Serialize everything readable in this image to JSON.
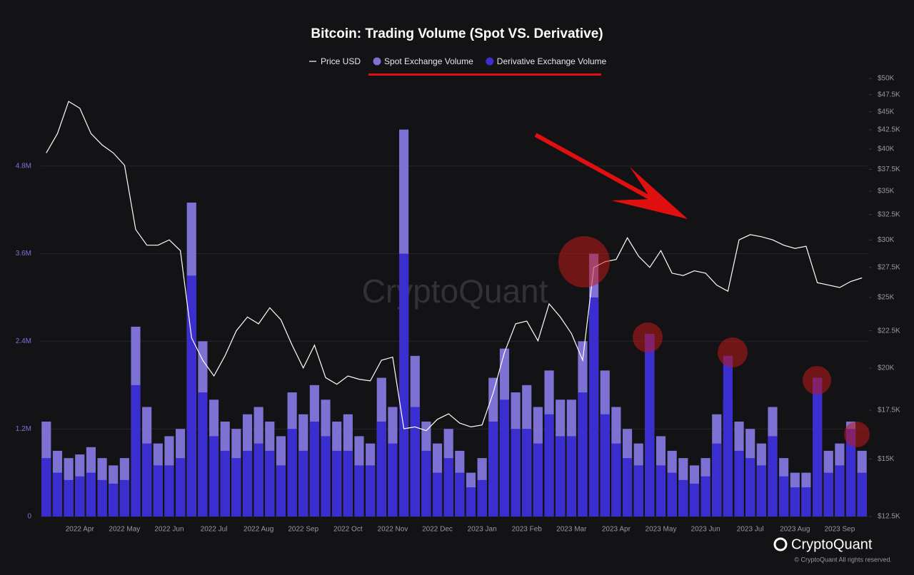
{
  "chart_data": {
    "type": "bar",
    "title": "Bitcoin: Trading Volume (Spot VS. Derivative)",
    "watermark": "CryptoQuant",
    "brand": "CryptoQuant",
    "copyright": "© CryptoQuant All rights reserved.",
    "categories": [
      null,
      null,
      null,
      "2022 Apr",
      null,
      null,
      null,
      "2022 May",
      null,
      null,
      null,
      "2022 Jun",
      null,
      null,
      null,
      "2022 Jul",
      null,
      null,
      null,
      "2022 Aug",
      null,
      null,
      null,
      "2022 Sep",
      null,
      null,
      null,
      "2022 Oct",
      null,
      null,
      null,
      "2022 Nov",
      null,
      null,
      null,
      "2022 Dec",
      null,
      null,
      null,
      "2023 Jan",
      null,
      null,
      null,
      "2023 Feb",
      null,
      null,
      null,
      "2023 Mar",
      null,
      null,
      null,
      "2023 Apr",
      null,
      null,
      null,
      "2023 May",
      null,
      null,
      null,
      "2023 Jun",
      null,
      null,
      null,
      "2023 Jul",
      null,
      null,
      null,
      "2023 Aug",
      null,
      null,
      null,
      "2023 Sep",
      null,
      null
    ],
    "series": [
      {
        "name": "Price USD",
        "type": "line",
        "axis": "y2",
        "color": "#ffffff",
        "values": [
          39500,
          42000,
          46500,
          45500,
          42000,
          40500,
          39500,
          38000,
          31000,
          29500,
          29500,
          30000,
          29000,
          22000,
          20500,
          19500,
          20800,
          22500,
          23500,
          23000,
          24200,
          23300,
          21500,
          20000,
          21500,
          19400,
          19000,
          19500,
          19300,
          19200,
          20500,
          20700,
          16500,
          16600,
          16400,
          17000,
          17300,
          16800,
          16600,
          16700,
          18500,
          21000,
          23000,
          23200,
          21800,
          24500,
          23500,
          22300,
          20500,
          27500,
          28000,
          28200,
          30200,
          28500,
          27500,
          29000,
          27000,
          26800,
          27200,
          27000,
          26000,
          25500,
          30000,
          30500,
          30300,
          30000,
          29500,
          29200,
          29400,
          26200,
          26000,
          25800,
          26300,
          26600
        ]
      },
      {
        "name": "Spot Exchange Volume",
        "type": "bar",
        "color": "#7d72d4",
        "values": [
          1300000,
          900000,
          800000,
          850000,
          950000,
          800000,
          700000,
          800000,
          2600000,
          1500000,
          1000000,
          1100000,
          1200000,
          4300000,
          2400000,
          1600000,
          1300000,
          1200000,
          1400000,
          1500000,
          1300000,
          1100000,
          1700000,
          1400000,
          1800000,
          1600000,
          1300000,
          1400000,
          1100000,
          1000000,
          1900000,
          1500000,
          5300000,
          2200000,
          1300000,
          1000000,
          1200000,
          900000,
          600000,
          800000,
          1900000,
          2300000,
          1700000,
          1800000,
          1500000,
          2000000,
          1600000,
          1600000,
          2400000,
          3600000,
          2000000,
          1500000,
          1200000,
          1000000,
          2500000,
          1100000,
          900000,
          800000,
          700000,
          800000,
          1400000,
          1600000,
          1300000,
          1200000,
          1000000,
          1500000,
          800000,
          600000,
          600000,
          1900000,
          900000,
          1000000,
          1300000,
          900000
        ]
      },
      {
        "name": "Derivative Exchange Volume",
        "type": "bar",
        "color": "#3b2ed0",
        "values": [
          800000,
          600000,
          500000,
          550000,
          600000,
          500000,
          450000,
          500000,
          1800000,
          1000000,
          700000,
          700000,
          800000,
          3300000,
          1700000,
          1100000,
          900000,
          800000,
          900000,
          1000000,
          900000,
          700000,
          1200000,
          900000,
          1300000,
          1100000,
          900000,
          900000,
          700000,
          700000,
          1300000,
          1000000,
          3600000,
          1500000,
          900000,
          600000,
          800000,
          600000,
          400000,
          500000,
          1300000,
          1600000,
          1200000,
          1200000,
          1000000,
          1400000,
          1100000,
          1100000,
          1700000,
          3000000,
          1400000,
          1000000,
          800000,
          700000,
          2500000,
          700000,
          600000,
          500000,
          450000,
          550000,
          1000000,
          2200000,
          900000,
          800000,
          700000,
          1100000,
          550000,
          400000,
          400000,
          1900000,
          600000,
          700000,
          1200000,
          600000
        ]
      }
    ],
    "ylim": [
      0,
      6000000
    ],
    "yticks": [
      0,
      {
        "value": 1200000,
        "label": "1.2M"
      },
      {
        "value": 2400000,
        "label": "2.4M"
      },
      {
        "value": 3600000,
        "label": "3.6M"
      },
      {
        "value": 4800000,
        "label": "4.8M"
      }
    ],
    "y2lim": [
      12500,
      50000
    ],
    "y2log": true,
    "y2ticks": [
      {
        "value": 12500,
        "label": "$12.5K"
      },
      {
        "value": 15000,
        "label": "$15K"
      },
      {
        "value": 17500,
        "label": "$17.5K"
      },
      {
        "value": 20000,
        "label": "$20K"
      },
      {
        "value": 22500,
        "label": "$22.5K"
      },
      {
        "value": 25000,
        "label": "$25K"
      },
      {
        "value": 27500,
        "label": "$27.5K"
      },
      {
        "value": 30000,
        "label": "$30K"
      },
      {
        "value": 32500,
        "label": "$32.5K"
      },
      {
        "value": 35000,
        "label": "$35K"
      },
      {
        "value": 37500,
        "label": "$37.5K"
      },
      {
        "value": 40000,
        "label": "$40K"
      },
      {
        "value": 42500,
        "label": "$42.5K"
      },
      {
        "value": 45000,
        "label": "$45K"
      },
      {
        "value": 47500,
        "label": "$47.5K"
      },
      {
        "value": 50000,
        "label": "$50K"
      }
    ],
    "grid": true
  }
}
